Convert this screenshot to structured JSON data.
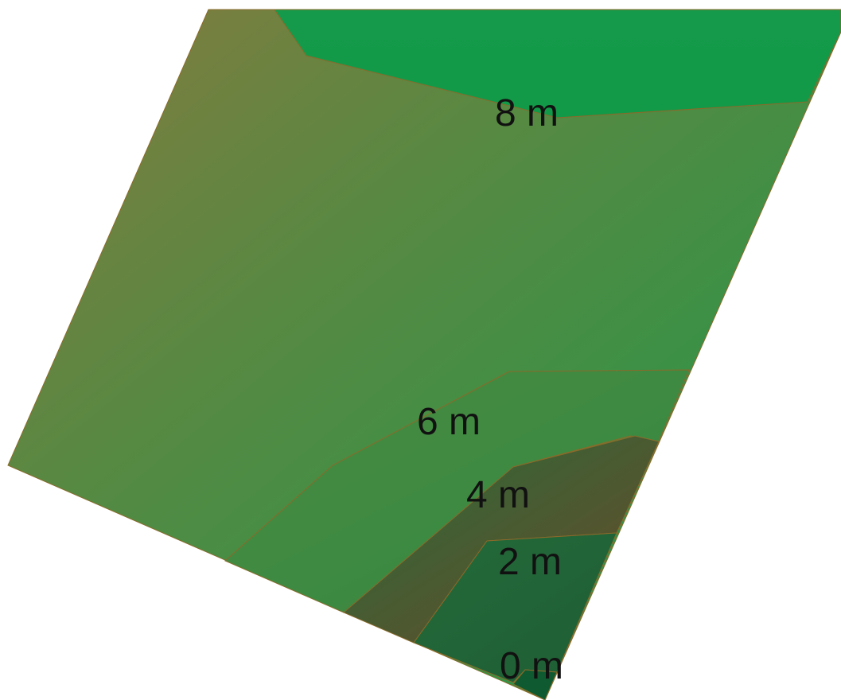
{
  "map": {
    "contour_labels": {
      "m8": "8 m",
      "m6": "6 m",
      "m4": "4 m",
      "m2": "2 m",
      "m0": "0 m"
    },
    "colors": {
      "band_green": "#149a4a",
      "band_olive": "#5e7a3a",
      "band_brown": "#6a5a2e",
      "band_dark": "#2a6a3a",
      "band_deep": "#205e36",
      "edge": "#8a6a2a",
      "label": "#111111"
    }
  }
}
